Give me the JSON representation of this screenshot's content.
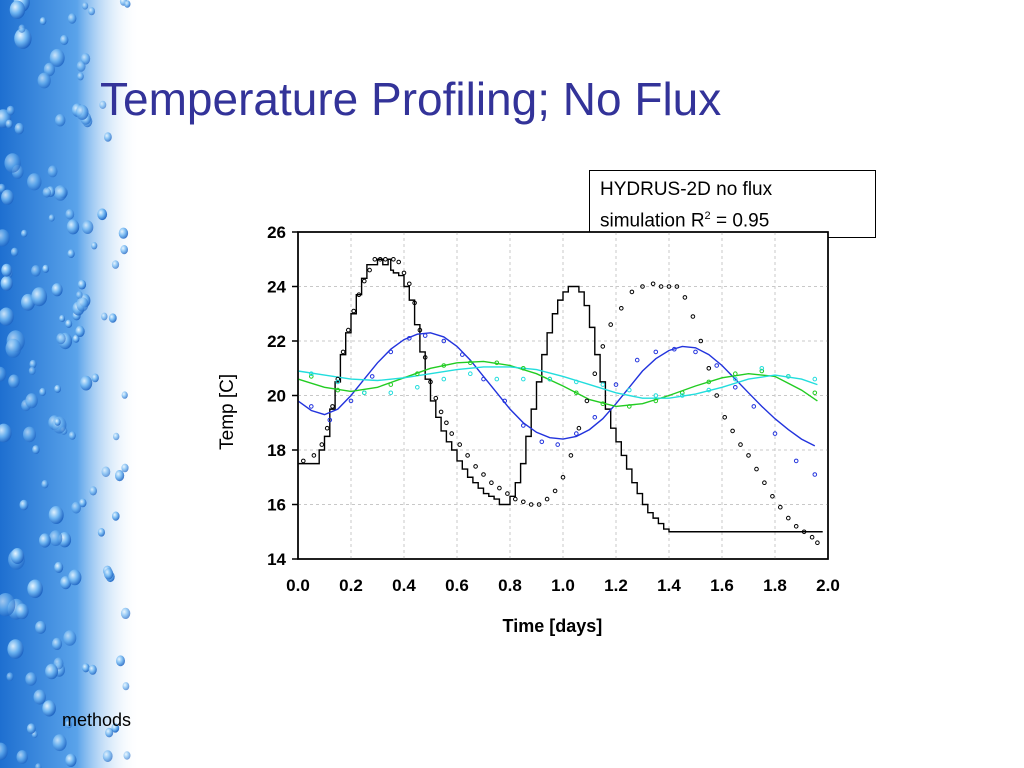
{
  "slide": {
    "title": "Temperature Profiling; No Flux",
    "footer": "methods"
  },
  "callout": {
    "line1": "HYDRUS-2D no flux",
    "line2_prefix": "simulation R",
    "line2_sup": "2",
    "line2_suffix": " = 0.95"
  },
  "colors": {
    "title": "#333399",
    "strip_blue": "#1e6fd0",
    "series_black": "#000000",
    "series_blue": "#2233dd",
    "series_green": "#22cc22",
    "series_cyan": "#22dddd"
  },
  "chart_data": {
    "type": "line",
    "xlabel": "Time [days]",
    "ylabel": "Temp [C]",
    "xlim": [
      0,
      2
    ],
    "ylim": [
      14,
      26
    ],
    "xticks": [
      "0.0",
      "0.2",
      "0.4",
      "0.6",
      "0.8",
      "1.0",
      "1.2",
      "1.4",
      "1.6",
      "1.8",
      "2.0"
    ],
    "yticks": [
      "14",
      "16",
      "18",
      "20",
      "22",
      "24",
      "26"
    ],
    "grid": true,
    "series": [
      {
        "color": "#000000",
        "style": "step",
        "x": [
          0,
          0.05,
          0.08,
          0.1,
          0.12,
          0.14,
          0.16,
          0.18,
          0.2,
          0.22,
          0.24,
          0.26,
          0.28,
          0.3,
          0.32,
          0.34,
          0.35,
          0.36,
          0.38,
          0.4,
          0.42,
          0.44,
          0.46,
          0.48,
          0.5,
          0.52,
          0.54,
          0.56,
          0.58,
          0.6,
          0.62,
          0.64,
          0.66,
          0.68,
          0.7,
          0.72,
          0.74,
          0.76,
          0.78,
          0.8,
          0.82,
          0.84,
          0.86,
          0.88,
          0.9,
          0.92,
          0.94,
          0.96,
          0.98,
          1.0,
          1.02,
          1.04,
          1.06,
          1.08,
          1.1,
          1.12,
          1.14,
          1.16,
          1.18,
          1.2,
          1.22,
          1.24,
          1.26,
          1.28,
          1.3,
          1.32,
          1.34,
          1.36,
          1.38,
          1.4,
          1.42,
          1.44,
          1.46,
          1.48,
          1.5,
          1.52,
          1.54,
          1.56,
          1.58,
          1.6,
          1.62,
          1.64,
          1.66,
          1.68,
          1.7,
          1.72,
          1.74,
          1.76,
          1.78,
          1.8,
          1.82,
          1.84,
          1.86,
          1.88,
          1.9,
          1.92,
          1.94,
          1.96
        ],
        "y": [
          17.5,
          17.5,
          18.0,
          18.5,
          19.5,
          20.5,
          21.5,
          22.3,
          23.0,
          23.7,
          24.3,
          24.8,
          24.8,
          25.0,
          24.8,
          25.0,
          24.6,
          24.5,
          24.4,
          24.0,
          23.5,
          22.6,
          21.6,
          20.6,
          19.8,
          19.2,
          18.7,
          18.3,
          18.0,
          17.6,
          17.3,
          17.0,
          16.8,
          16.6,
          16.4,
          16.3,
          16.2,
          16.0,
          16.0,
          16.3,
          16.8,
          17.5,
          18.5,
          19.5,
          20.5,
          21.5,
          22.3,
          23.0,
          23.5,
          23.8,
          24.0,
          24.0,
          23.8,
          23.3,
          22.5,
          21.5,
          20.5,
          19.5,
          18.8,
          18.3,
          17.8,
          17.3,
          16.8,
          16.4,
          16.0,
          15.7,
          15.5,
          15.3,
          15.1,
          15.0,
          15.0,
          15.0,
          15.0,
          15.0,
          15.0,
          15.0,
          15.0,
          15.0,
          15.0,
          15.0,
          15.0,
          15.0,
          15.0,
          15.0,
          15.0,
          15.0,
          15.0,
          15.0,
          15.0,
          15.0,
          15.0,
          15.0,
          15.0,
          15.0,
          15.0,
          15.0,
          15.0,
          15.0
        ]
      },
      {
        "color": "#2233dd",
        "style": "smooth",
        "x": [
          0,
          0.05,
          0.1,
          0.15,
          0.2,
          0.25,
          0.3,
          0.35,
          0.4,
          0.45,
          0.5,
          0.55,
          0.6,
          0.65,
          0.7,
          0.75,
          0.8,
          0.85,
          0.9,
          0.95,
          1.0,
          1.05,
          1.1,
          1.15,
          1.2,
          1.25,
          1.3,
          1.35,
          1.4,
          1.45,
          1.5,
          1.55,
          1.6,
          1.65,
          1.7,
          1.75,
          1.8,
          1.85,
          1.9,
          1.95
        ],
        "y": [
          19.8,
          19.45,
          19.3,
          19.5,
          20.0,
          20.6,
          21.2,
          21.7,
          22.05,
          22.25,
          22.3,
          22.15,
          21.8,
          21.3,
          20.7,
          20.1,
          19.5,
          19.0,
          18.65,
          18.45,
          18.4,
          18.5,
          18.75,
          19.15,
          19.7,
          20.3,
          20.9,
          21.35,
          21.65,
          21.8,
          21.75,
          21.5,
          21.1,
          20.6,
          20.1,
          19.6,
          19.15,
          18.75,
          18.4,
          18.15
        ]
      },
      {
        "color": "#22cc22",
        "style": "smooth",
        "x": [
          0,
          0.1,
          0.2,
          0.3,
          0.4,
          0.5,
          0.6,
          0.7,
          0.8,
          0.9,
          1.0,
          1.1,
          1.2,
          1.3,
          1.4,
          1.5,
          1.6,
          1.7,
          1.8,
          1.9,
          1.96
        ],
        "y": [
          20.6,
          20.3,
          20.15,
          20.3,
          20.65,
          21.0,
          21.2,
          21.25,
          21.1,
          20.8,
          20.35,
          19.85,
          19.6,
          19.7,
          20.0,
          20.35,
          20.65,
          20.8,
          20.7,
          20.2,
          19.8
        ]
      },
      {
        "color": "#22dddd",
        "style": "smooth",
        "x": [
          0,
          0.1,
          0.2,
          0.3,
          0.4,
          0.5,
          0.6,
          0.7,
          0.8,
          0.9,
          1.0,
          1.1,
          1.2,
          1.3,
          1.4,
          1.5,
          1.6,
          1.7,
          1.8,
          1.9,
          1.96
        ],
        "y": [
          20.9,
          20.75,
          20.6,
          20.55,
          20.65,
          20.8,
          20.95,
          21.05,
          21.05,
          20.95,
          20.7,
          20.4,
          20.1,
          19.9,
          19.9,
          20.05,
          20.3,
          20.6,
          20.75,
          20.6,
          20.4
        ]
      }
    ],
    "observed": [
      {
        "color": "#000000",
        "x": [
          0.02,
          0.06,
          0.09,
          0.11,
          0.13,
          0.15,
          0.17,
          0.19,
          0.21,
          0.23,
          0.25,
          0.27,
          0.29,
          0.31,
          0.33,
          0.36,
          0.38,
          0.4,
          0.42,
          0.44,
          0.46,
          0.48,
          0.5,
          0.52,
          0.54,
          0.56,
          0.58,
          0.61,
          0.64,
          0.67,
          0.7,
          0.73,
          0.76,
          0.79,
          0.82,
          0.85,
          0.88,
          0.91,
          0.94,
          0.97,
          1.0,
          1.03,
          1.06,
          1.09,
          1.12,
          1.15,
          1.18,
          1.22,
          1.26,
          1.3,
          1.34,
          1.37,
          1.4,
          1.43,
          1.46,
          1.49,
          1.52,
          1.55,
          1.58,
          1.61,
          1.64,
          1.67,
          1.7,
          1.73,
          1.76,
          1.79,
          1.82,
          1.85,
          1.88,
          1.91,
          1.94,
          1.96
        ],
        "y": [
          17.6,
          17.8,
          18.2,
          18.8,
          19.6,
          20.6,
          21.6,
          22.4,
          23.1,
          23.7,
          24.2,
          24.6,
          25.0,
          25.0,
          25.0,
          25.0,
          24.9,
          24.5,
          24.1,
          23.4,
          22.4,
          21.4,
          20.5,
          19.9,
          19.4,
          19.0,
          18.6,
          18.2,
          17.8,
          17.4,
          17.1,
          16.8,
          16.6,
          16.4,
          16.2,
          16.1,
          16.0,
          16.0,
          16.2,
          16.5,
          17.0,
          17.8,
          18.8,
          19.8,
          20.8,
          21.8,
          22.6,
          23.2,
          23.8,
          24.0,
          24.1,
          24.0,
          24.0,
          24.0,
          23.6,
          22.9,
          22.0,
          21.0,
          20.0,
          19.2,
          18.7,
          18.2,
          17.8,
          17.3,
          16.8,
          16.3,
          15.9,
          15.5,
          15.2,
          15.0,
          14.8,
          14.6
        ]
      },
      {
        "color": "#2233dd",
        "x": [
          0.05,
          0.12,
          0.2,
          0.28,
          0.35,
          0.42,
          0.48,
          0.55,
          0.62,
          0.7,
          0.78,
          0.85,
          0.92,
          0.98,
          1.05,
          1.12,
          1.2,
          1.28,
          1.35,
          1.42,
          1.5,
          1.58,
          1.65,
          1.72,
          1.8,
          1.88,
          1.95
        ],
        "y": [
          19.6,
          19.1,
          19.8,
          20.7,
          21.6,
          22.1,
          22.2,
          22.0,
          21.5,
          20.6,
          19.8,
          18.9,
          18.3,
          18.2,
          18.6,
          19.2,
          20.4,
          21.3,
          21.6,
          21.7,
          21.6,
          21.1,
          20.3,
          19.6,
          18.6,
          17.6,
          17.1
        ]
      },
      {
        "color": "#22cc22",
        "x": [
          0.05,
          0.15,
          0.25,
          0.35,
          0.45,
          0.55,
          0.65,
          0.75,
          0.85,
          0.95,
          1.05,
          1.15,
          1.25,
          1.35,
          1.45,
          1.55,
          1.65,
          1.75,
          1.85,
          1.95
        ],
        "y": [
          20.7,
          20.2,
          20.1,
          20.4,
          20.8,
          21.1,
          21.2,
          21.2,
          21.0,
          20.6,
          20.1,
          19.7,
          19.6,
          19.8,
          20.1,
          20.5,
          20.8,
          20.9,
          20.7,
          20.1
        ]
      },
      {
        "color": "#22dddd",
        "x": [
          0.05,
          0.15,
          0.25,
          0.35,
          0.45,
          0.55,
          0.65,
          0.75,
          0.85,
          0.95,
          1.05,
          1.15,
          1.25,
          1.35,
          1.45,
          1.55,
          1.65,
          1.75,
          1.85,
          1.95
        ],
        "y": [
          20.8,
          20.5,
          20.1,
          20.1,
          20.3,
          20.6,
          20.8,
          20.6,
          20.6,
          20.6,
          20.5,
          20.4,
          20.2,
          20.0,
          20.0,
          20.2,
          20.6,
          21.0,
          20.7,
          20.6
        ]
      }
    ]
  }
}
